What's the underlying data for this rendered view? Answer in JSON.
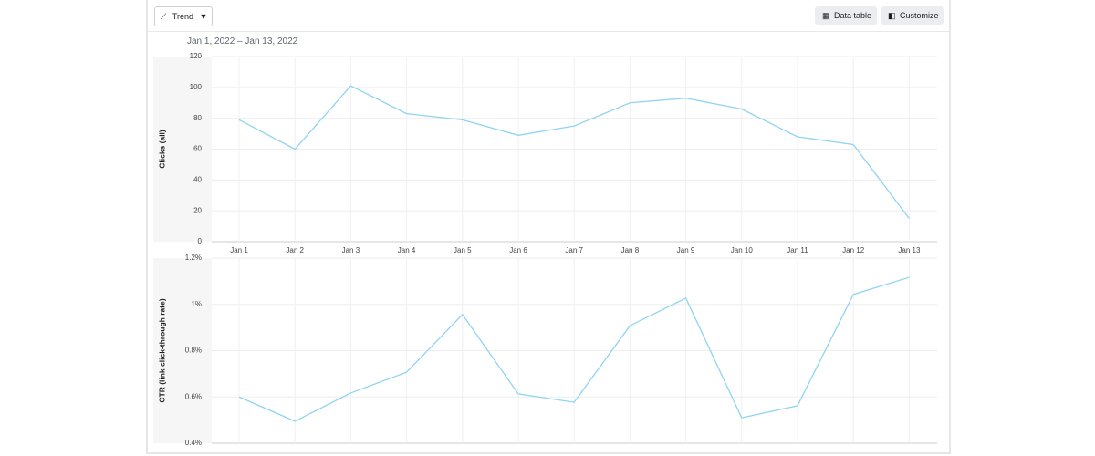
{
  "toolbar": {
    "view": "Trend",
    "buttons": [
      "Data table",
      "Customize"
    ]
  },
  "date_range": "Jan 1, 2022 – Jan 13, 2022",
  "chart_data": [
    {
      "type": "line",
      "y_label": "Clicks (all)",
      "color": "#8fd4f2",
      "grid": true,
      "categories": [
        "Jan 1",
        "Jan 2",
        "Jan 3",
        "Jan 4",
        "Jan 5",
        "Jan 6",
        "Jan 7",
        "Jan 8",
        "Jan 9",
        "Jan 10",
        "Jan 11",
        "Jan 12",
        "Jan 13"
      ],
      "values": [
        79,
        60,
        101,
        83,
        79,
        69,
        75,
        90,
        93,
        86,
        68,
        63,
        15
      ],
      "ylim": [
        0,
        120
      ],
      "yticks": [
        0,
        20,
        40,
        60,
        80,
        100,
        120
      ]
    },
    {
      "type": "line",
      "y_label": "CTR (link click-through rate)",
      "color": "#8fd4f2",
      "grid": true,
      "values": [
        0.6,
        0.495,
        0.617,
        0.707,
        0.956,
        0.613,
        0.577,
        0.908,
        1.027,
        0.51,
        0.562,
        1.043,
        1.117
      ],
      "ylim": [
        0.4,
        1.2
      ],
      "yticks": [
        {
          "value": 0.4,
          "label": "0.4%"
        },
        {
          "value": 0.6,
          "label": "0.6%"
        },
        {
          "value": 0.8,
          "label": "0.8%"
        },
        {
          "value": 1,
          "label": "1%"
        },
        {
          "value": 1.2,
          "label": "1.2%"
        }
      ]
    }
  ]
}
